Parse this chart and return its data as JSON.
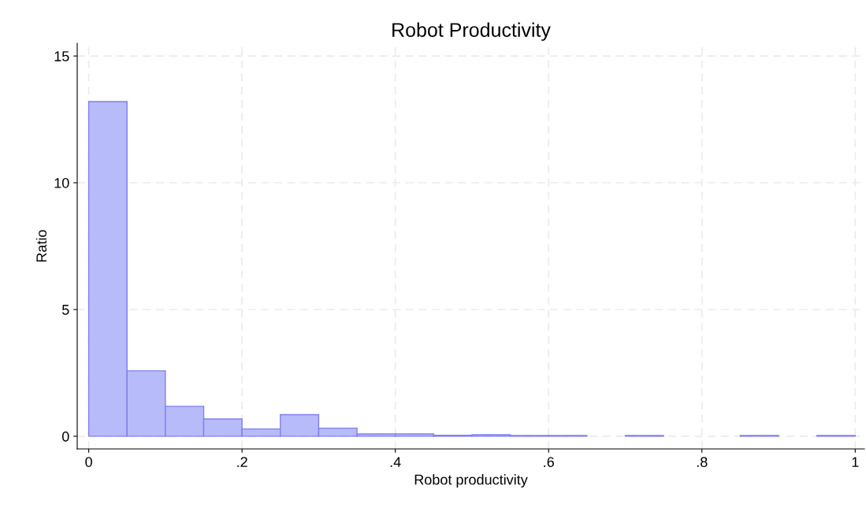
{
  "chart_data": {
    "type": "histogram",
    "title": "Robot Productivity",
    "xlabel": "Robot productivity",
    "ylabel": "Ratio",
    "bins": [
      0,
      0.05,
      0.1,
      0.15,
      0.2,
      0.25,
      0.3,
      0.35,
      0.4,
      0.45,
      0.5,
      0.55,
      0.6,
      0.65,
      0.7,
      0.75,
      0.8,
      0.85,
      0.9,
      0.95,
      1
    ],
    "values": [
      13.2,
      2.58,
      1.18,
      0.68,
      0.29,
      0.85,
      0.32,
      0.09,
      0.09,
      0.04,
      0.06,
      0.03,
      0.03,
      0,
      0.03,
      0,
      0,
      0.03,
      0,
      0.03
    ],
    "color": "#b8bbfa",
    "xlim": [
      -0.015,
      1.012
    ],
    "ylim": [
      -0.5,
      15.5
    ],
    "xticks": [
      {
        "value": 0,
        "label": "0"
      },
      {
        "value": 0.2,
        "label": ".2"
      },
      {
        "value": 0.4,
        "label": ".4"
      },
      {
        "value": 0.6,
        "label": ".6"
      },
      {
        "value": 0.8,
        "label": ".8"
      },
      {
        "value": 1,
        "label": "1"
      }
    ],
    "yticks": [
      0,
      5,
      10,
      15
    ],
    "grid": true
  }
}
